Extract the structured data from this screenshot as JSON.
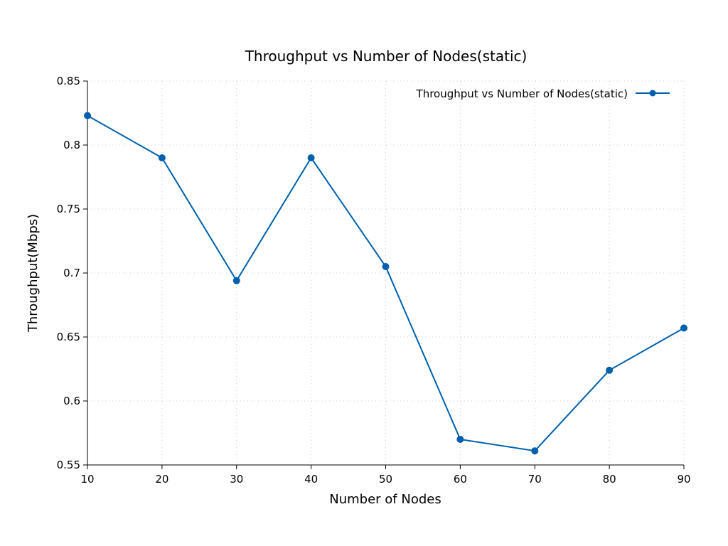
{
  "chart_data": {
    "type": "line",
    "title": "Throughput vs Number of Nodes(static)",
    "xlabel": "Number of Nodes",
    "ylabel": "Throughput(Mbps)",
    "x": [
      10,
      20,
      30,
      40,
      50,
      60,
      70,
      80,
      90
    ],
    "series": [
      {
        "name": "Throughput vs Number of Nodes(static)",
        "values": [
          0.823,
          0.79,
          0.694,
          0.79,
          0.705,
          0.57,
          0.561,
          0.624,
          0.657
        ],
        "color": "#0060ad",
        "marker": "circle"
      }
    ],
    "xlim": [
      10,
      90
    ],
    "ylim": [
      0.55,
      0.85
    ],
    "xticks": [
      "10",
      "20",
      "30",
      "40",
      "50",
      "60",
      "70",
      "80",
      "90"
    ],
    "yticks": [
      "0.55",
      "0.6",
      "0.65",
      "0.7",
      "0.75",
      "0.8",
      "0.85"
    ],
    "grid": true,
    "legend_position": "top-right"
  }
}
